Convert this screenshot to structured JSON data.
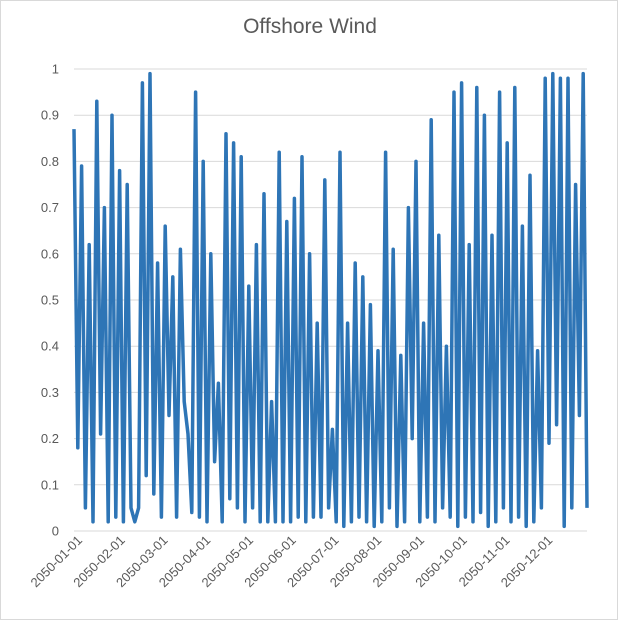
{
  "chart_data": {
    "type": "line",
    "title": "Offshore Wind",
    "xlabel": "",
    "ylabel": "",
    "ylim": [
      0,
      1
    ],
    "yticks": [
      "0",
      "0.1",
      "0.2",
      "0.3",
      "0.4",
      "0.5",
      "0.6",
      "0.7",
      "0.8",
      "0.9",
      "1"
    ],
    "xticks": [
      "2050-01-01",
      "2050-02-01",
      "2050-03-01",
      "2050-04-01",
      "2050-05-01",
      "2050-06-01",
      "2050-07-01",
      "2050-08-01",
      "2050-09-01",
      "2050-10-01",
      "2050-11-01",
      "2050-12-01"
    ],
    "grid": "horizontal",
    "legend": "none",
    "series_color": "#2e75b6",
    "series": [
      {
        "values": [
          0.87,
          0.18,
          0.79,
          0.05,
          0.62,
          0.02,
          0.93,
          0.21,
          0.7,
          0.02,
          0.9,
          0.03,
          0.78,
          0.02,
          0.75,
          0.05,
          0.02,
          0.05,
          0.97,
          0.12,
          0.99,
          0.08,
          0.58,
          0.03,
          0.66,
          0.25,
          0.55,
          0.03,
          0.61,
          0.28,
          0.21,
          0.04,
          0.95,
          0.03,
          0.8,
          0.02,
          0.6,
          0.15,
          0.32,
          0.02,
          0.86,
          0.07,
          0.84,
          0.05,
          0.81,
          0.02,
          0.53,
          0.05,
          0.62,
          0.02,
          0.73,
          0.02,
          0.28,
          0.02,
          0.82,
          0.02,
          0.67,
          0.02,
          0.72,
          0.03,
          0.81,
          0.02,
          0.6,
          0.03,
          0.45,
          0.03,
          0.76,
          0.05,
          0.22,
          0.02,
          0.82,
          0.01,
          0.45,
          0.02,
          0.58,
          0.03,
          0.55,
          0.02,
          0.49,
          0.01,
          0.39,
          0.02,
          0.82,
          0.05,
          0.61,
          0.01,
          0.38,
          0.02,
          0.7,
          0.2,
          0.8,
          0.02,
          0.45,
          0.03,
          0.89,
          0.02,
          0.64,
          0.05,
          0.4,
          0.03,
          0.95,
          0.01,
          0.97,
          0.03,
          0.62,
          0.02,
          0.96,
          0.04,
          0.9,
          0.01,
          0.64,
          0.02,
          0.95,
          0.05,
          0.84,
          0.02,
          0.96,
          0.03,
          0.66,
          0.01,
          0.77,
          0.02,
          0.39,
          0.05,
          0.98,
          0.19,
          0.99,
          0.23,
          0.98,
          0.01,
          0.98,
          0.05,
          0.75,
          0.25,
          0.99,
          0.05
        ]
      }
    ]
  }
}
